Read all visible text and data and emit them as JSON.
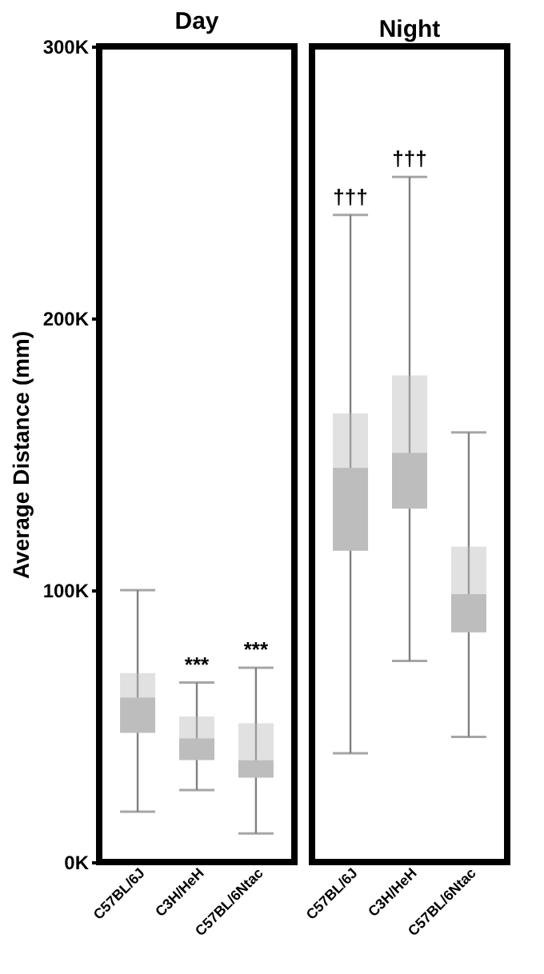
{
  "chart_data": [
    {
      "type": "box",
      "title": "Day",
      "ylabel": "Average Distance (mm)",
      "categories": [
        "C57BL/6J",
        "C3H/HeH",
        "C57BL/6Ntac"
      ],
      "ylim": [
        0,
        300000
      ],
      "yticks": [
        {
          "value": 0,
          "label": "0K"
        },
        {
          "value": 100000,
          "label": "100K"
        },
        {
          "value": 200000,
          "label": "200K"
        },
        {
          "value": 300000,
          "label": "300K"
        }
      ],
      "grid": false,
      "series": [
        {
          "color": "#bdbdbd",
          "boxes": [
            {
              "low": 18500,
              "q1": 47500,
              "median": 60500,
              "q3": 69500,
              "high": 100000
            },
            {
              "low": 26500,
              "q1": 37500,
              "median": 45500,
              "q3": 53500,
              "high": 66000
            },
            {
              "low": 10500,
              "q1": 31000,
              "median": 37500,
              "q3": 51000,
              "high": 71500
            }
          ]
        }
      ],
      "annotations": [
        {
          "text": "***",
          "x": "C3H/HeH",
          "y": 66000
        },
        {
          "text": "***",
          "x": "C57BL/6Ntac",
          "y": 71500
        }
      ]
    },
    {
      "type": "box",
      "title": "Night",
      "categories": [
        "C57BL/6J",
        "C3H/HeH",
        "C57BL/6Ntac"
      ],
      "ylim": [
        0,
        300000
      ],
      "grid": false,
      "tick_labels": "x",
      "series": [
        {
          "color": "#bdbdbd",
          "boxes": [
            {
              "low": 40000,
              "q1": 114500,
              "median": 145000,
              "q3": 165000,
              "high": 238000
            },
            {
              "low": 74000,
              "q1": 130000,
              "median": 150500,
              "q3": 179000,
              "high": 252000
            },
            {
              "low": 46000,
              "q1": 84500,
              "median": 98500,
              "q3": 116000,
              "high": 158000
            }
          ]
        }
      ],
      "annotations": [
        {
          "text": "†††",
          "x": "C57BL/6J",
          "y": 238000
        },
        {
          "text": "†††",
          "x": "C3H/HeH",
          "y": 252000
        }
      ]
    }
  ]
}
